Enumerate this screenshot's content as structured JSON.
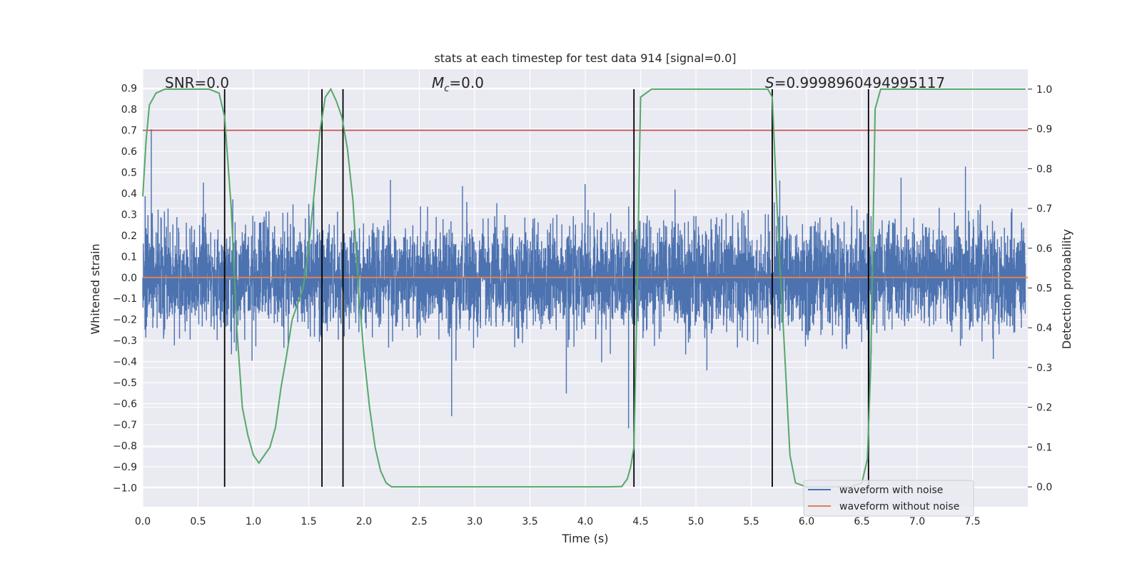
{
  "chart_data": {
    "type": "line",
    "title": "stats at each timestep for test data 914 [signal=0.0]",
    "xlabel": "Time (s)",
    "ylabel": "Whitened strain",
    "y2label": "Detection probability",
    "xlim": [
      0.0,
      8.0
    ],
    "ylim": [
      -1.09,
      0.99
    ],
    "y2lim": [
      -0.05,
      1.05
    ],
    "xticks": [
      "0.0",
      "0.5",
      "1.0",
      "1.5",
      "2.0",
      "2.5",
      "3.0",
      "3.5",
      "4.0",
      "4.5",
      "5.0",
      "5.5",
      "6.0",
      "6.5",
      "7.0",
      "7.5"
    ],
    "yticks": [
      "0.9",
      "0.8",
      "0.7",
      "0.6",
      "0.5",
      "0.4",
      "0.3",
      "0.2",
      "0.1",
      "0.0",
      "−0.1",
      "−0.2",
      "−0.3",
      "−0.4",
      "−0.5",
      "−0.6",
      "−0.7",
      "−0.8",
      "−0.9",
      "−1.0"
    ],
    "y2ticks": [
      "1.0",
      "0.9",
      "0.8",
      "0.7",
      "0.6",
      "0.5",
      "0.4",
      "0.3",
      "0.2",
      "0.1",
      "0.0"
    ],
    "annotations": {
      "snr": "SNR=0.0",
      "mc_prefix": "M",
      "mc_sub": "c",
      "mc_suffix": "=0.0",
      "s_prefix": "S",
      "s_suffix": "=0.9998960494995117"
    },
    "threshold": 0.7,
    "vlines": [
      0.74,
      1.62,
      1.81,
      4.44,
      5.69,
      6.56
    ],
    "series": [
      {
        "name": "waveform with noise",
        "color": "#4c72b0",
        "note": "whitened strain noise, mostly within ±0.45, peaks ~0.83 and ~−1.0"
      },
      {
        "name": "waveform without noise",
        "color": "#dd8452",
        "values_constant": 0.0
      },
      {
        "color": "#55a868",
        "x": [
          0.0,
          0.03,
          0.06,
          0.12,
          0.2,
          0.4,
          0.6,
          0.69,
          0.74,
          0.8,
          0.85,
          0.9,
          0.95,
          1.0,
          1.05,
          1.1,
          1.15,
          1.2,
          1.25,
          1.3,
          1.35,
          1.4,
          1.45,
          1.5,
          1.55,
          1.6,
          1.65,
          1.7,
          1.75,
          1.8,
          1.85,
          1.9,
          1.95,
          2.0,
          2.05,
          2.1,
          2.15,
          2.2,
          2.25,
          2.5,
          3.0,
          3.5,
          4.0,
          4.2,
          4.33,
          4.38,
          4.41,
          4.44,
          4.47,
          4.5,
          4.6,
          5.0,
          5.5,
          5.65,
          5.69,
          5.75,
          5.8,
          5.85,
          5.9,
          6.0,
          6.2,
          6.4,
          6.5,
          6.55,
          6.58,
          6.62,
          6.67,
          7.0,
          7.5,
          7.98
        ],
        "y": [
          0.73,
          0.87,
          0.96,
          0.99,
          1.0,
          1.0,
          1.0,
          0.99,
          0.93,
          0.7,
          0.4,
          0.2,
          0.13,
          0.08,
          0.06,
          0.08,
          0.1,
          0.15,
          0.25,
          0.33,
          0.42,
          0.46,
          0.5,
          0.6,
          0.74,
          0.89,
          0.98,
          1.0,
          0.97,
          0.93,
          0.85,
          0.72,
          0.5,
          0.33,
          0.2,
          0.1,
          0.04,
          0.01,
          0.0,
          0.0,
          0.0,
          0.0,
          0.0,
          0.0,
          0.001,
          0.02,
          0.05,
          0.1,
          0.5,
          0.98,
          1.0,
          1.0,
          1.0,
          1.0,
          0.98,
          0.6,
          0.35,
          0.08,
          0.01,
          0.0,
          0.0,
          0.0,
          0.01,
          0.07,
          0.3,
          0.95,
          1.0,
          1.0,
          1.0,
          1.0
        ]
      }
    ],
    "legend_position": "lower-right",
    "colors": {
      "background": "#eaeaf2",
      "grid": "#ffffff",
      "threshold": "#c44e52",
      "vline": "#000000"
    }
  }
}
